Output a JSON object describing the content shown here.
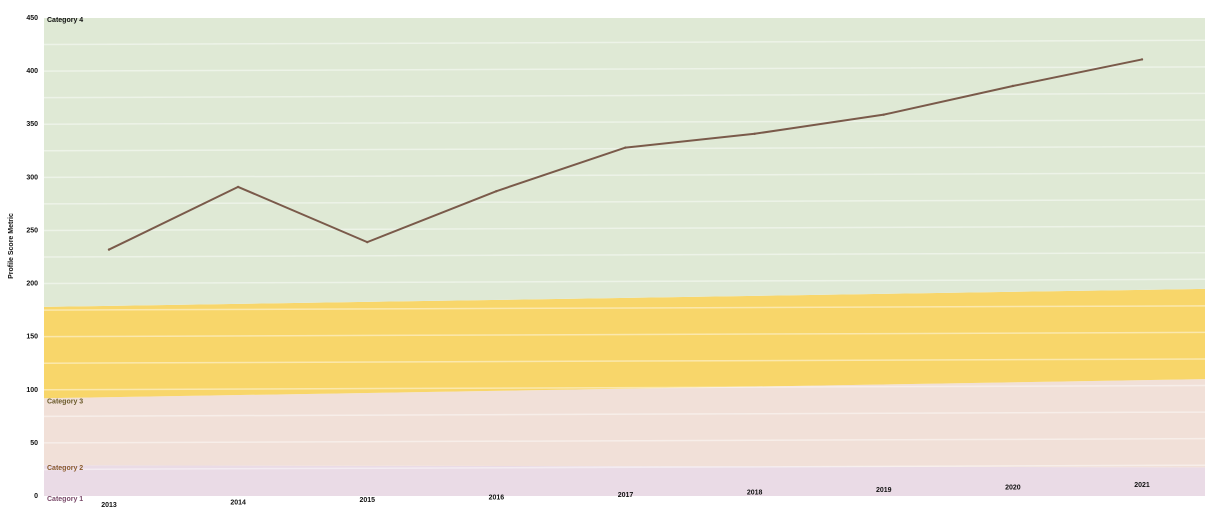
{
  "chart_data": {
    "type": "line",
    "title": "",
    "xlabel": "",
    "ylabel": "Profile Score Metric",
    "categories": [
      "2013",
      "2014",
      "2015",
      "2016",
      "2017",
      "2018",
      "2019",
      "2020",
      "2021"
    ],
    "values": [
      232,
      291,
      239,
      287,
      328,
      341,
      359,
      386,
      411
    ],
    "ylim": [
      0,
      450
    ],
    "yticks": [
      "0",
      "50",
      "100",
      "150",
      "200",
      "250",
      "300",
      "350",
      "400",
      "450"
    ],
    "grid": false,
    "line_color": "#7a5a4a",
    "bands": [
      {
        "label": "Category 1",
        "start": [
          0,
          29
        ],
        "end": [
          0,
          27
        ],
        "color": "#eadbe6",
        "label_color": "#7a4a6a"
      },
      {
        "label": "Category 2",
        "start": [
          29,
          92
        ],
        "end": [
          27,
          110
        ],
        "color": "#f1e0d8",
        "label_color": "#8a5a2a"
      },
      {
        "label": "Category 3",
        "start": [
          92,
          178
        ],
        "end": [
          110,
          195
        ],
        "color": "#f8d66a",
        "label_color": "#6a5a2a"
      },
      {
        "label": "Category 4",
        "start": [
          178,
          450
        ],
        "end": [
          195,
          450
        ],
        "color": "#dfe9d5",
        "label_color": "#111111"
      }
    ]
  }
}
